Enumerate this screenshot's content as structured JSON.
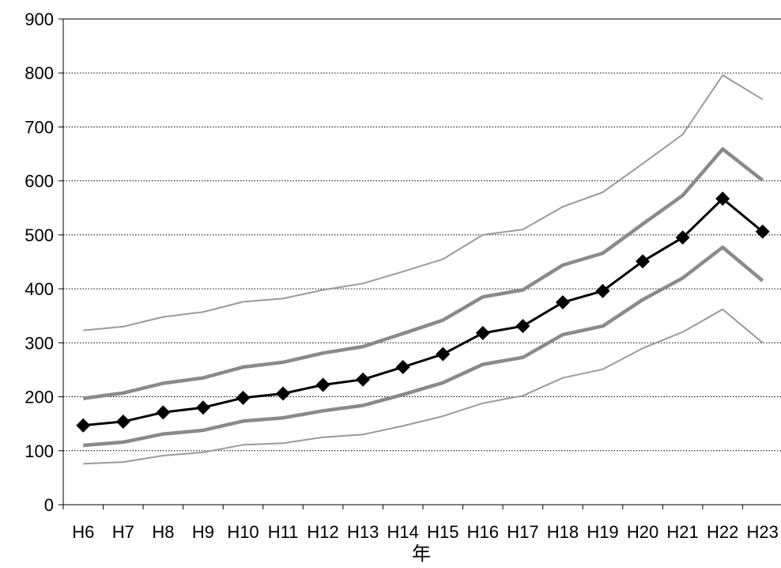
{
  "chart_data": {
    "type": "line",
    "title": "",
    "xlabel": "年",
    "ylabel": "",
    "ylim": [
      0,
      900
    ],
    "yticks": [
      0,
      100,
      200,
      300,
      400,
      500,
      600,
      700,
      800,
      900
    ],
    "grid": "horizontal dotted",
    "categories": [
      "H6",
      "H7",
      "H8",
      "H9",
      "H10",
      "H11",
      "H12",
      "H13",
      "H14",
      "H15",
      "H16",
      "H17",
      "H18",
      "H19",
      "H20",
      "H21",
      "H22",
      "H23"
    ],
    "series": [
      {
        "values": [
          323,
          330,
          348,
          357,
          376,
          382,
          398,
          410,
          432,
          455,
          500,
          510,
          552,
          579,
          632,
          686,
          796,
          751
        ],
        "color": "#9a9a9a",
        "style": "thin"
      },
      {
        "values": [
          197,
          207,
          225,
          235,
          255,
          264,
          281,
          293,
          317,
          342,
          385,
          398,
          444,
          466,
          520,
          573,
          659,
          601
        ],
        "color": "#8a8a8a",
        "style": "thick"
      },
      {
        "values": [
          147,
          154,
          171,
          180,
          198,
          206,
          222,
          232,
          255,
          279,
          318,
          331,
          375,
          396,
          451,
          495,
          567,
          506
        ],
        "color": "#000000",
        "style": "marker-diamond"
      },
      {
        "values": [
          110,
          116,
          131,
          138,
          155,
          161,
          174,
          184,
          204,
          226,
          260,
          273,
          315,
          331,
          380,
          420,
          477,
          415
        ],
        "color": "#8a8a8a",
        "style": "thick"
      },
      {
        "values": [
          76,
          79,
          91,
          97,
          111,
          114,
          125,
          130,
          146,
          164,
          188,
          202,
          235,
          251,
          290,
          320,
          362,
          300
        ],
        "color": "#9a9a9a",
        "style": "thin"
      }
    ]
  }
}
